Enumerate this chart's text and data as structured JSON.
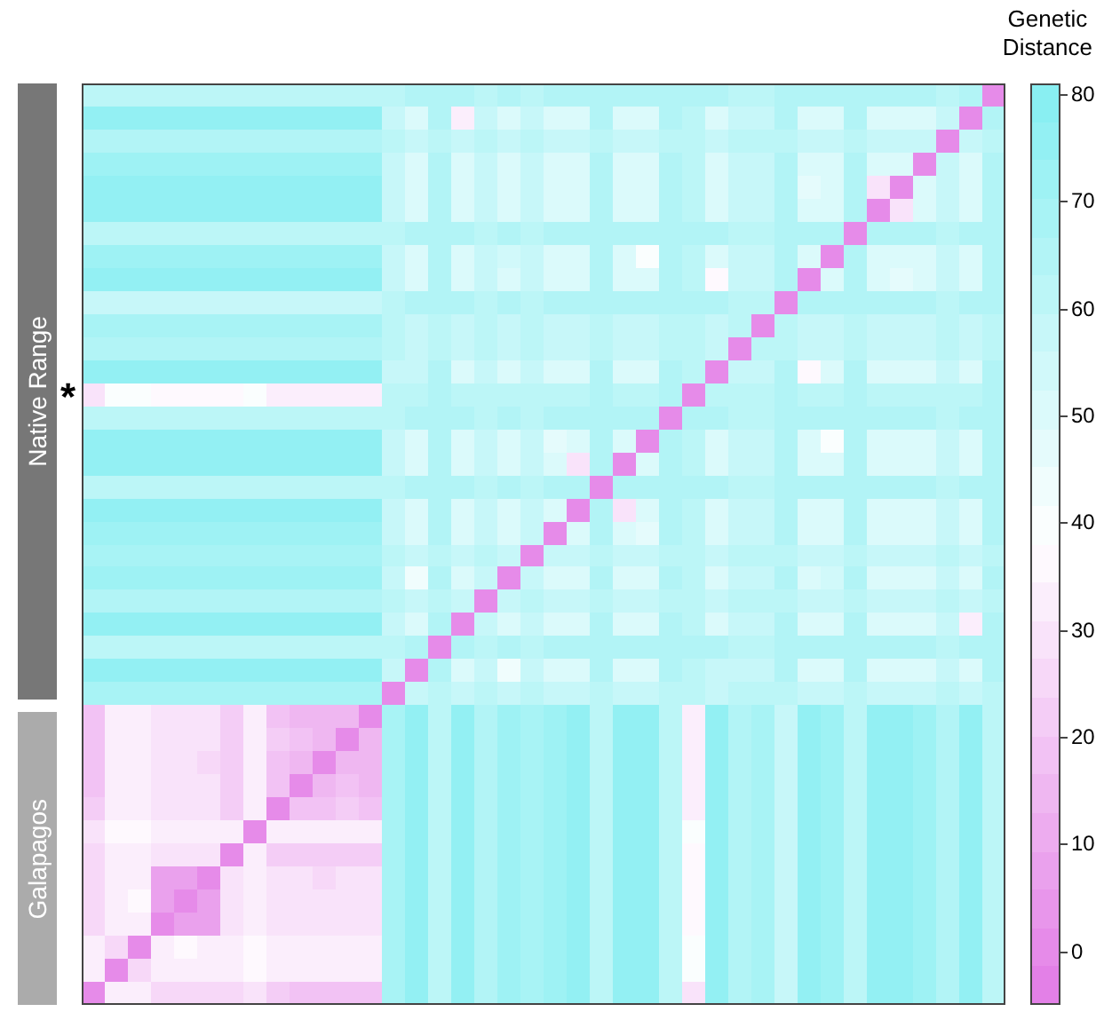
{
  "chart_data": {
    "type": "heatmap",
    "clabel": "Genetic Distance",
    "clim": [
      -5,
      81
    ],
    "cticks": [
      0,
      10,
      20,
      30,
      40,
      50,
      60,
      70,
      80
    ],
    "tick_labels": false,
    "annotations": [
      "Native Range",
      "Galapagos",
      "*"
    ],
    "categories": [
      null,
      null,
      null,
      null,
      null,
      null,
      null,
      null,
      null,
      null,
      null,
      null,
      null,
      null,
      null,
      null,
      null,
      null,
      null,
      null,
      null,
      null,
      null,
      null,
      null,
      null,
      null,
      null,
      null,
      null,
      null,
      null,
      null,
      null,
      null,
      null,
      null,
      null,
      null,
      null
    ],
    "y_categories": [
      null,
      null,
      null,
      null,
      null,
      null,
      null,
      null,
      null,
      null,
      null,
      null,
      null,
      null,
      null,
      null,
      null,
      null,
      null,
      null,
      null,
      null,
      null,
      null,
      null,
      null,
      null,
      null,
      null,
      null,
      null,
      null,
      null,
      null,
      null,
      null,
      null,
      null,
      null,
      null
    ],
    "cells": [
      [
        60,
        60,
        60,
        60,
        60,
        60,
        60,
        60,
        60,
        60,
        60,
        60,
        60,
        63,
        64,
        66,
        64,
        63,
        64,
        63,
        64,
        64,
        66,
        64,
        64,
        66,
        64,
        64,
        63,
        63,
        66,
        64,
        64,
        66,
        64,
        64,
        64,
        63,
        64,
        0
      ],
      [
        74,
        74,
        74,
        74,
        74,
        74,
        74,
        74,
        74,
        74,
        74,
        74,
        74,
        58,
        52,
        64,
        34,
        58,
        52,
        58,
        52,
        52,
        64,
        52,
        52,
        64,
        62,
        52,
        58,
        58,
        64,
        52,
        52,
        64,
        52,
        52,
        52,
        58,
        0,
        64
      ],
      [
        66,
        66,
        66,
        66,
        66,
        66,
        66,
        66,
        66,
        66,
        66,
        66,
        66,
        60,
        58,
        63,
        58,
        60,
        58,
        60,
        58,
        58,
        63,
        58,
        58,
        63,
        62,
        58,
        60,
        60,
        63,
        58,
        58,
        63,
        58,
        58,
        58,
        0,
        58,
        63
      ],
      [
        73,
        73,
        73,
        73,
        73,
        73,
        73,
        73,
        73,
        73,
        73,
        73,
        73,
        58,
        52,
        64,
        52,
        58,
        52,
        58,
        52,
        52,
        64,
        52,
        52,
        64,
        62,
        52,
        58,
        58,
        64,
        52,
        52,
        64,
        52,
        52,
        0,
        58,
        52,
        64
      ],
      [
        74,
        74,
        74,
        74,
        74,
        74,
        74,
        74,
        74,
        74,
        74,
        74,
        74,
        58,
        52,
        64,
        52,
        58,
        52,
        58,
        52,
        52,
        64,
        52,
        52,
        64,
        62,
        52,
        58,
        58,
        64,
        48,
        52,
        64,
        28,
        0,
        52,
        58,
        52,
        64
      ],
      [
        75,
        75,
        75,
        75,
        75,
        75,
        75,
        75,
        75,
        75,
        75,
        75,
        75,
        58,
        52,
        64,
        52,
        58,
        52,
        58,
        52,
        52,
        64,
        52,
        52,
        64,
        62,
        52,
        58,
        58,
        64,
        52,
        52,
        64,
        0,
        28,
        52,
        58,
        52,
        64
      ],
      [
        61,
        61,
        61,
        61,
        61,
        61,
        61,
        61,
        61,
        61,
        61,
        61,
        61,
        63,
        64,
        66,
        64,
        63,
        64,
        63,
        64,
        64,
        66,
        64,
        64,
        66,
        64,
        64,
        63,
        63,
        66,
        64,
        64,
        0,
        64,
        64,
        64,
        63,
        64,
        66
      ],
      [
        73,
        73,
        73,
        73,
        73,
        73,
        73,
        73,
        73,
        73,
        73,
        73,
        73,
        58,
        52,
        64,
        52,
        58,
        55,
        58,
        52,
        52,
        64,
        52,
        40,
        64,
        62,
        52,
        58,
        58,
        64,
        52,
        0,
        64,
        52,
        52,
        52,
        58,
        52,
        64
      ],
      [
        74,
        74,
        74,
        74,
        74,
        74,
        74,
        74,
        74,
        74,
        74,
        74,
        74,
        58,
        52,
        64,
        52,
        58,
        52,
        58,
        52,
        52,
        64,
        52,
        52,
        64,
        62,
        36,
        58,
        58,
        64,
        0,
        52,
        64,
        52,
        48,
        52,
        58,
        52,
        64
      ],
      [
        59,
        59,
        59,
        59,
        59,
        59,
        59,
        59,
        59,
        59,
        59,
        59,
        59,
        63,
        64,
        66,
        64,
        63,
        64,
        63,
        64,
        64,
        66,
        64,
        64,
        66,
        64,
        64,
        63,
        63,
        0,
        64,
        64,
        66,
        64,
        64,
        64,
        63,
        64,
        66
      ],
      [
        68,
        68,
        68,
        68,
        68,
        68,
        68,
        68,
        68,
        68,
        68,
        68,
        68,
        60,
        58,
        63,
        58,
        60,
        58,
        60,
        58,
        58,
        63,
        58,
        58,
        63,
        62,
        58,
        60,
        0,
        63,
        58,
        58,
        63,
        58,
        58,
        58,
        60,
        58,
        63
      ],
      [
        66,
        66,
        66,
        66,
        66,
        66,
        66,
        66,
        66,
        66,
        66,
        66,
        66,
        60,
        58,
        63,
        58,
        60,
        58,
        60,
        58,
        58,
        63,
        58,
        58,
        63,
        62,
        58,
        0,
        60,
        63,
        58,
        58,
        63,
        58,
        58,
        58,
        60,
        58,
        63
      ],
      [
        75,
        75,
        75,
        75,
        75,
        75,
        75,
        75,
        75,
        75,
        75,
        75,
        75,
        58,
        56,
        64,
        52,
        58,
        52,
        58,
        52,
        52,
        64,
        52,
        52,
        64,
        62,
        0,
        58,
        58,
        64,
        36,
        52,
        64,
        52,
        52,
        52,
        58,
        52,
        64
      ],
      [
        30,
        38,
        38,
        36,
        36,
        36,
        35,
        38,
        34,
        34,
        34,
        34,
        34,
        62,
        62,
        64,
        62,
        62,
        62,
        62,
        62,
        62,
        64,
        62,
        62,
        64,
        0,
        62,
        62,
        62,
        64,
        62,
        62,
        64,
        62,
        62,
        62,
        62,
        62,
        64
      ],
      [
        60,
        60,
        60,
        60,
        60,
        60,
        60,
        60,
        60,
        60,
        60,
        60,
        60,
        63,
        64,
        66,
        64,
        63,
        64,
        63,
        64,
        64,
        66,
        64,
        64,
        0,
        64,
        64,
        63,
        63,
        66,
        64,
        64,
        66,
        64,
        64,
        64,
        63,
        64,
        66
      ],
      [
        74,
        74,
        74,
        74,
        74,
        74,
        74,
        74,
        74,
        74,
        74,
        74,
        74,
        58,
        52,
        64,
        52,
        58,
        52,
        58,
        48,
        52,
        64,
        52,
        0,
        64,
        62,
        52,
        58,
        58,
        64,
        52,
        40,
        64,
        52,
        52,
        52,
        58,
        52,
        64
      ],
      [
        76,
        76,
        76,
        76,
        76,
        76,
        76,
        76,
        76,
        76,
        76,
        76,
        76,
        58,
        52,
        64,
        52,
        58,
        52,
        58,
        52,
        30,
        64,
        0,
        52,
        64,
        62,
        52,
        58,
        58,
        64,
        52,
        52,
        64,
        52,
        52,
        52,
        58,
        52,
        64
      ],
      [
        61,
        61,
        61,
        61,
        61,
        61,
        61,
        61,
        61,
        61,
        61,
        61,
        61,
        63,
        64,
        66,
        64,
        63,
        64,
        63,
        64,
        64,
        0,
        64,
        64,
        66,
        64,
        64,
        63,
        63,
        66,
        64,
        64,
        66,
        64,
        64,
        64,
        63,
        64,
        66
      ],
      [
        74,
        74,
        74,
        74,
        74,
        74,
        74,
        74,
        74,
        74,
        74,
        74,
        74,
        58,
        52,
        64,
        52,
        58,
        52,
        58,
        52,
        0,
        64,
        30,
        52,
        64,
        62,
        52,
        58,
        58,
        64,
        52,
        52,
        64,
        52,
        52,
        52,
        58,
        52,
        64
      ],
      [
        72,
        72,
        72,
        72,
        72,
        72,
        72,
        72,
        72,
        72,
        72,
        72,
        72,
        58,
        52,
        64,
        52,
        58,
        52,
        58,
        0,
        52,
        64,
        52,
        48,
        64,
        62,
        52,
        58,
        58,
        64,
        52,
        52,
        64,
        52,
        52,
        52,
        58,
        52,
        64
      ],
      [
        67,
        67,
        67,
        67,
        67,
        67,
        67,
        67,
        67,
        67,
        67,
        67,
        67,
        60,
        58,
        63,
        58,
        60,
        58,
        0,
        58,
        58,
        63,
        58,
        58,
        63,
        62,
        58,
        60,
        60,
        63,
        58,
        58,
        63,
        58,
        58,
        58,
        60,
        58,
        63
      ],
      [
        73,
        73,
        73,
        73,
        73,
        73,
        73,
        73,
        73,
        73,
        73,
        73,
        73,
        58,
        45,
        64,
        52,
        58,
        0,
        58,
        52,
        52,
        64,
        52,
        52,
        64,
        62,
        52,
        58,
        58,
        64,
        52,
        55,
        64,
        52,
        52,
        52,
        58,
        52,
        64
      ],
      [
        66,
        66,
        66,
        66,
        66,
        66,
        66,
        66,
        66,
        66,
        66,
        66,
        66,
        60,
        58,
        63,
        58,
        0,
        58,
        60,
        58,
        58,
        63,
        58,
        58,
        63,
        62,
        58,
        60,
        60,
        63,
        58,
        58,
        63,
        58,
        58,
        58,
        60,
        58,
        63
      ],
      [
        75,
        75,
        75,
        75,
        75,
        75,
        75,
        75,
        75,
        75,
        75,
        75,
        75,
        58,
        52,
        64,
        0,
        58,
        52,
        58,
        52,
        52,
        64,
        52,
        52,
        64,
        62,
        52,
        58,
        58,
        64,
        52,
        52,
        64,
        52,
        52,
        52,
        58,
        34,
        64
      ],
      [
        60,
        60,
        60,
        60,
        60,
        60,
        60,
        60,
        60,
        60,
        60,
        60,
        60,
        63,
        64,
        0,
        64,
        63,
        64,
        63,
        64,
        64,
        66,
        64,
        64,
        66,
        64,
        64,
        63,
        63,
        66,
        64,
        64,
        66,
        64,
        64,
        64,
        63,
        64,
        66
      ],
      [
        74,
        74,
        74,
        74,
        74,
        74,
        74,
        74,
        74,
        74,
        74,
        74,
        74,
        58,
        0,
        64,
        52,
        58,
        45,
        58,
        52,
        52,
        64,
        52,
        52,
        64,
        62,
        56,
        58,
        58,
        64,
        52,
        52,
        64,
        52,
        52,
        52,
        58,
        52,
        64
      ],
      [
        67,
        67,
        67,
        67,
        67,
        67,
        67,
        67,
        67,
        67,
        67,
        67,
        67,
        0,
        58,
        63,
        58,
        60,
        58,
        60,
        58,
        58,
        63,
        58,
        58,
        63,
        62,
        58,
        60,
        60,
        63,
        58,
        58,
        63,
        58,
        58,
        58,
        60,
        58,
        63
      ],
      [
        20,
        33,
        32,
        29,
        29,
        28,
        22,
        31,
        20,
        16,
        16,
        14,
        0,
        67,
        74,
        60,
        75,
        66,
        73,
        67,
        72,
        74,
        61,
        76,
        74,
        60,
        34,
        75,
        66,
        68,
        59,
        74,
        73,
        61,
        75,
        74,
        73,
        66,
        74,
        60
      ],
      [
        19,
        32,
        32,
        28,
        28,
        28,
        23,
        31,
        21,
        17,
        15,
        0,
        14,
        67,
        74,
        60,
        75,
        66,
        73,
        67,
        72,
        74,
        61,
        76,
        74,
        60,
        34,
        75,
        66,
        68,
        59,
        74,
        73,
        61,
        75,
        74,
        73,
        66,
        74,
        60
      ],
      [
        20,
        32,
        31,
        28,
        28,
        27,
        22,
        31,
        20,
        16,
        0,
        15,
        16,
        67,
        74,
        60,
        75,
        66,
        73,
        67,
        72,
        74,
        61,
        76,
        74,
        60,
        34,
        75,
        66,
        68,
        59,
        74,
        73,
        61,
        75,
        74,
        73,
        66,
        74,
        60
      ],
      [
        20,
        32,
        32,
        28,
        28,
        28,
        22,
        31,
        20,
        0,
        16,
        17,
        16,
        67,
        74,
        60,
        75,
        66,
        73,
        67,
        72,
        74,
        61,
        76,
        74,
        60,
        34,
        75,
        66,
        68,
        59,
        74,
        73,
        61,
        75,
        74,
        73,
        66,
        74,
        60
      ],
      [
        22,
        33,
        33,
        29,
        29,
        29,
        23,
        32,
        0,
        20,
        20,
        21,
        20,
        67,
        74,
        60,
        75,
        66,
        73,
        67,
        72,
        74,
        61,
        76,
        74,
        60,
        34,
        75,
        66,
        68,
        59,
        74,
        73,
        61,
        75,
        74,
        73,
        66,
        74,
        60
      ],
      [
        30,
        36,
        36,
        34,
        34,
        33,
        32,
        0,
        32,
        31,
        31,
        31,
        31,
        67,
        74,
        60,
        75,
        66,
        73,
        67,
        72,
        74,
        61,
        76,
        74,
        60,
        38,
        75,
        66,
        68,
        59,
        74,
        73,
        61,
        75,
        74,
        73,
        66,
        74,
        60
      ],
      [
        24,
        33,
        33,
        30,
        30,
        29,
        0,
        32,
        23,
        22,
        22,
        23,
        22,
        67,
        74,
        60,
        75,
        66,
        73,
        67,
        72,
        74,
        61,
        76,
        74,
        60,
        35,
        75,
        66,
        68,
        59,
        74,
        73,
        61,
        75,
        74,
        73,
        66,
        74,
        60
      ],
      [
        26,
        34,
        34,
        7,
        6,
        0,
        29,
        33,
        29,
        28,
        27,
        28,
        28,
        67,
        74,
        60,
        75,
        66,
        73,
        67,
        72,
        74,
        61,
        76,
        74,
        60,
        36,
        75,
        66,
        68,
        59,
        74,
        73,
        61,
        75,
        74,
        73,
        66,
        74,
        60
      ],
      [
        26,
        34,
        35,
        6,
        0,
        6,
        30,
        34,
        29,
        28,
        28,
        28,
        29,
        67,
        74,
        60,
        75,
        66,
        73,
        67,
        72,
        74,
        61,
        76,
        74,
        60,
        36,
        75,
        66,
        68,
        59,
        74,
        73,
        61,
        75,
        74,
        73,
        66,
        74,
        60
      ],
      [
        26,
        34,
        34,
        0,
        6,
        7,
        30,
        34,
        29,
        28,
        28,
        28,
        29,
        67,
        74,
        60,
        75,
        66,
        73,
        67,
        72,
        74,
        61,
        76,
        74,
        60,
        36,
        75,
        66,
        68,
        59,
        74,
        73,
        61,
        75,
        74,
        73,
        66,
        74,
        60
      ],
      [
        34,
        25,
        0,
        34,
        35,
        34,
        33,
        36,
        33,
        32,
        31,
        32,
        32,
        67,
        74,
        60,
        75,
        66,
        73,
        67,
        72,
        74,
        61,
        76,
        74,
        60,
        38,
        75,
        66,
        68,
        59,
        74,
        73,
        61,
        75,
        74,
        73,
        66,
        74,
        60
      ],
      [
        34,
        0,
        25,
        34,
        34,
        34,
        33,
        36,
        33,
        32,
        32,
        32,
        33,
        67,
        74,
        60,
        75,
        66,
        73,
        67,
        72,
        74,
        61,
        76,
        74,
        60,
        38,
        75,
        66,
        68,
        59,
        74,
        73,
        61,
        75,
        74,
        73,
        66,
        74,
        60
      ],
      [
        0,
        34,
        34,
        26,
        26,
        26,
        24,
        30,
        22,
        20,
        20,
        19,
        20,
        67,
        74,
        60,
        75,
        66,
        73,
        67,
        72,
        74,
        61,
        76,
        74,
        60,
        30,
        75,
        66,
        68,
        59,
        74,
        73,
        61,
        75,
        74,
        73,
        66,
        74,
        60
      ]
    ]
  }
}
